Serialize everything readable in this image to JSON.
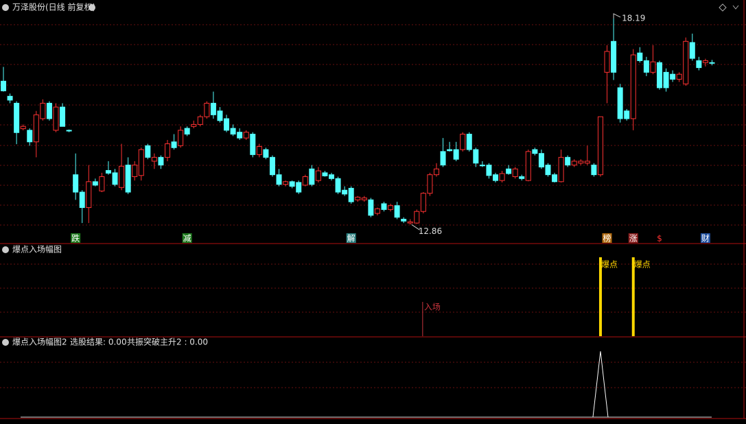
{
  "chart_data": {
    "type": "candlestick",
    "title": "万泽股份(日线 前复权)",
    "up_color": "#ff3232",
    "down_color": "#54ffff",
    "ylim": [
      12.6,
      18.67
    ],
    "candles": [
      [
        16.57,
        16.94,
        16.3,
        16.32
      ],
      [
        16.18,
        16.25,
        16.0,
        16.08
      ],
      [
        16.0,
        16.05,
        14.94,
        15.24
      ],
      [
        15.34,
        15.45,
        15.3,
        15.4
      ],
      [
        15.3,
        15.35,
        14.9,
        15.0
      ],
      [
        15.0,
        15.8,
        14.6,
        15.7
      ],
      [
        15.6,
        16.1,
        15.55,
        16.0
      ],
      [
        16.0,
        16.05,
        15.55,
        15.6
      ],
      [
        15.3,
        16.0,
        15.25,
        15.9
      ],
      [
        15.9,
        16.0,
        15.4,
        15.4
      ],
      [
        15.3,
        15.32,
        15.25,
        15.28
      ],
      [
        14.15,
        14.7,
        13.5,
        13.7
      ],
      [
        13.7,
        13.75,
        12.9,
        13.3
      ],
      [
        13.3,
        14.4,
        12.9,
        13.97
      ],
      [
        13.97,
        14.05,
        13.85,
        13.88
      ],
      [
        13.73,
        14.2,
        13.7,
        14.1
      ],
      [
        14.26,
        14.5,
        14.15,
        14.19
      ],
      [
        14.2,
        14.3,
        13.85,
        13.9
      ],
      [
        13.82,
        14.95,
        13.75,
        14.37
      ],
      [
        14.4,
        14.6,
        13.65,
        13.7
      ],
      [
        14.1,
        14.5,
        14.0,
        14.4
      ],
      [
        14.13,
        14.85,
        14.0,
        14.8
      ],
      [
        14.9,
        14.95,
        14.55,
        14.6
      ],
      [
        14.5,
        14.7,
        14.3,
        14.6
      ],
      [
        14.6,
        14.65,
        14.3,
        14.4
      ],
      [
        14.6,
        15.05,
        14.5,
        14.95
      ],
      [
        15.0,
        15.2,
        14.8,
        14.85
      ],
      [
        14.9,
        15.4,
        14.85,
        15.3
      ],
      [
        15.35,
        15.4,
        15.15,
        15.2
      ],
      [
        15.4,
        15.55,
        15.35,
        15.45
      ],
      [
        15.45,
        15.7,
        15.4,
        15.65
      ],
      [
        15.65,
        16.05,
        15.6,
        16.0
      ],
      [
        16.0,
        16.3,
        15.6,
        15.7
      ],
      [
        15.8,
        15.9,
        15.5,
        15.55
      ],
      [
        15.6,
        15.7,
        15.25,
        15.3
      ],
      [
        15.35,
        15.45,
        15.15,
        15.2
      ],
      [
        15.25,
        15.35,
        15.05,
        15.1
      ],
      [
        15.1,
        15.3,
        15.05,
        15.25
      ],
      [
        15.2,
        15.25,
        14.6,
        14.67
      ],
      [
        14.67,
        14.95,
        14.6,
        14.88
      ],
      [
        14.8,
        14.85,
        14.55,
        14.6
      ],
      [
        14.6,
        14.65,
        14.1,
        14.15
      ],
      [
        14.15,
        14.3,
        13.85,
        13.9
      ],
      [
        13.9,
        14.0,
        13.85,
        13.97
      ],
      [
        13.97,
        14.0,
        13.8,
        13.85
      ],
      [
        13.95,
        14.0,
        13.65,
        13.7
      ],
      [
        13.88,
        14.15,
        13.85,
        14.1
      ],
      [
        14.3,
        14.4,
        13.85,
        13.9
      ],
      [
        14.0,
        14.35,
        13.95,
        14.25
      ],
      [
        14.2,
        14.25,
        14.1,
        14.12
      ],
      [
        14.15,
        14.2,
        14.0,
        14.05
      ],
      [
        14.05,
        14.1,
        13.65,
        13.7
      ],
      [
        13.75,
        13.85,
        13.6,
        13.65
      ],
      [
        13.8,
        13.85,
        13.4,
        13.45
      ],
      [
        13.5,
        13.6,
        13.45,
        13.57
      ],
      [
        13.5,
        13.6,
        13.45,
        13.55
      ],
      [
        13.5,
        13.55,
        13.05,
        13.1
      ],
      [
        13.15,
        13.3,
        13.1,
        13.27
      ],
      [
        13.4,
        13.45,
        13.2,
        13.25
      ],
      [
        13.25,
        13.4,
        13.2,
        13.35
      ],
      [
        13.35,
        13.45,
        13.0,
        13.05
      ],
      [
        13.0,
        13.05,
        12.9,
        12.95
      ],
      [
        12.9,
        13.0,
        12.86,
        12.93
      ],
      [
        12.9,
        13.25,
        12.88,
        13.2
      ],
      [
        13.2,
        13.7,
        13.15,
        13.67
      ],
      [
        13.67,
        14.2,
        13.6,
        14.15
      ],
      [
        14.15,
        14.45,
        14.1,
        14.3
      ],
      [
        14.75,
        15.1,
        14.35,
        14.4
      ],
      [
        14.8,
        15.0,
        14.75,
        14.77
      ],
      [
        14.8,
        15.0,
        14.5,
        14.55
      ],
      [
        14.8,
        15.25,
        14.75,
        15.2
      ],
      [
        15.2,
        15.25,
        14.75,
        14.8
      ],
      [
        14.8,
        14.85,
        14.35,
        14.45
      ],
      [
        14.4,
        14.5,
        14.35,
        14.38
      ],
      [
        14.4,
        14.45,
        14.05,
        14.13
      ],
      [
        14.15,
        14.2,
        13.95,
        14.0
      ],
      [
        14.0,
        14.25,
        13.95,
        14.18
      ],
      [
        14.3,
        14.4,
        14.15,
        14.18
      ],
      [
        14.1,
        14.35,
        14.05,
        14.3
      ],
      [
        14.1,
        14.15,
        14.0,
        14.05
      ],
      [
        14.0,
        14.8,
        13.98,
        14.75
      ],
      [
        14.8,
        14.85,
        14.65,
        14.7
      ],
      [
        14.7,
        14.8,
        14.3,
        14.35
      ],
      [
        14.4,
        14.45,
        14.1,
        14.15
      ],
      [
        14.15,
        14.2,
        13.95,
        13.97
      ],
      [
        13.97,
        14.8,
        13.95,
        14.6
      ],
      [
        14.6,
        14.65,
        14.35,
        14.4
      ],
      [
        14.4,
        14.55,
        14.35,
        14.5
      ],
      [
        14.45,
        14.55,
        14.4,
        14.5
      ],
      [
        14.45,
        14.9,
        14.4,
        14.5
      ],
      [
        14.4,
        14.45,
        14.1,
        14.15
      ],
      [
        14.15,
        15.65,
        14.1,
        15.65
      ],
      [
        16.8,
        17.5,
        16.0,
        17.34
      ],
      [
        17.6,
        18.19,
        16.6,
        16.8
      ],
      [
        16.4,
        16.5,
        15.5,
        15.6
      ],
      [
        15.8,
        15.85,
        15.55,
        15.6
      ],
      [
        15.6,
        17.4,
        15.3,
        17.25
      ],
      [
        17.3,
        17.45,
        17.05,
        17.1
      ],
      [
        17.1,
        17.2,
        16.7,
        16.8
      ],
      [
        16.8,
        17.5,
        16.75,
        17.07
      ],
      [
        17.05,
        17.1,
        16.35,
        16.4
      ],
      [
        16.8,
        16.9,
        16.3,
        16.4
      ],
      [
        16.75,
        16.85,
        16.55,
        16.62
      ],
      [
        16.62,
        16.8,
        16.55,
        16.75
      ],
      [
        16.5,
        17.7,
        16.45,
        17.6
      ],
      [
        17.57,
        17.8,
        17.1,
        17.16
      ],
      [
        17.1,
        17.2,
        16.85,
        16.92
      ],
      [
        17.05,
        17.15,
        16.95,
        17.1
      ],
      [
        17.05,
        17.12,
        16.98,
        17.04
      ]
    ],
    "annotations": [
      {
        "index": 93,
        "value": 18.19
      },
      {
        "index": 62,
        "value": 12.86
      }
    ],
    "tags": [
      {
        "index": 11,
        "label": "跌",
        "color": "#1e7a1e"
      },
      {
        "index": 28,
        "label": "减",
        "color": "#1e7a1e"
      },
      {
        "index": 53,
        "label": "解",
        "color": "#2a8080"
      },
      {
        "index": 92,
        "label": "榜",
        "color": "#b06a10"
      },
      {
        "index": 96,
        "label": "涨",
        "color": "#8a1e1e"
      },
      {
        "index": 100,
        "label": "$",
        "color": "#000000"
      },
      {
        "index": 107,
        "label": "财",
        "color": "#2050a0"
      }
    ]
  },
  "panel2": {
    "title": "爆点入场幅图",
    "markers": [
      {
        "index": 64,
        "label": "入场",
        "color": "#c8343c"
      },
      {
        "index": 91,
        "label": "爆点",
        "color": "#ffd700"
      },
      {
        "index": 96,
        "label": "爆点",
        "color": "#ffd700"
      }
    ]
  },
  "panel3": {
    "title": "爆点入场幅图2",
    "text1": "选股结果: 0.00",
    "text2": "共振突破主升2 : 0.00",
    "spike_index": 91
  }
}
